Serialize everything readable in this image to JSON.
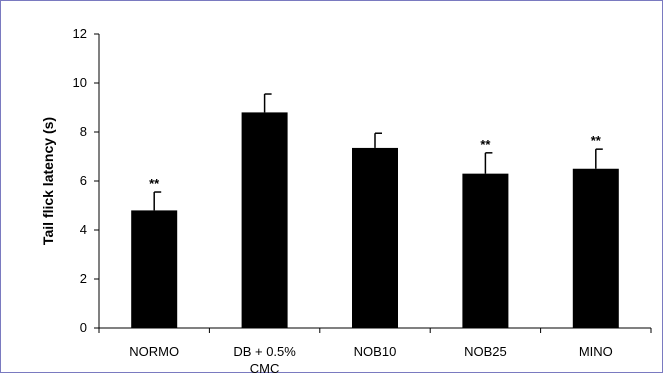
{
  "chart_data": {
    "type": "bar",
    "ylabel": "Tail flick latency (s)",
    "xlabel": "",
    "ylim": [
      0,
      12
    ],
    "yticks": [
      0,
      2,
      4,
      6,
      8,
      10,
      12
    ],
    "categories": [
      [
        "NORMO"
      ],
      [
        "DB + 0.5%",
        "CMC"
      ],
      [
        "NOB10"
      ],
      [
        "NOB25"
      ],
      [
        "MINO"
      ]
    ],
    "values": [
      4.8,
      8.8,
      7.35,
      6.3,
      6.5
    ],
    "errors": [
      0.75,
      0.75,
      0.6,
      0.85,
      0.8
    ],
    "annotations": [
      "**",
      "",
      "",
      "**",
      "**"
    ],
    "bar_color": "#000000",
    "grid": false,
    "legend": "none"
  }
}
